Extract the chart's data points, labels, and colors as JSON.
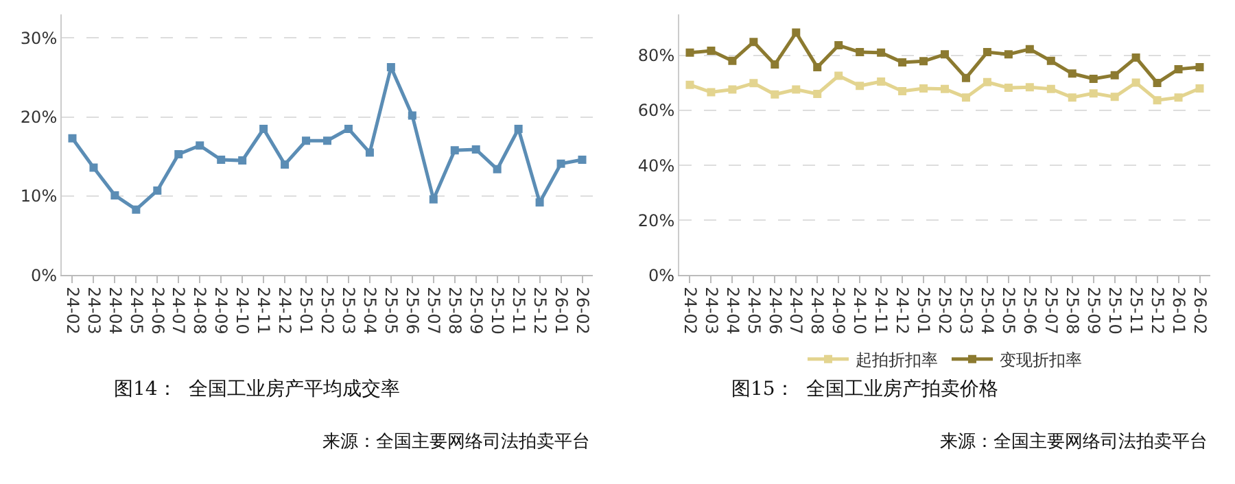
{
  "chart_data": [
    {
      "type": "line",
      "title": "图14：  全国工业房产平均成交率",
      "annotations": [
        "来源：全国主要网络司法拍卖平台"
      ],
      "categories": [
        "24-02",
        "24-03",
        "24-04",
        "24-05",
        "24-06",
        "24-07",
        "24-08",
        "24-09",
        "24-10",
        "24-11",
        "24-12",
        "25-01",
        "25-02",
        "25-03",
        "25-04",
        "25-05",
        "25-06",
        "25-07",
        "25-08",
        "25-09",
        "25-10",
        "25-11",
        "25-12",
        "26-01",
        "26-02"
      ],
      "series": [
        {
          "color": "#5b8db5",
          "values": [
            17.3,
            13.6,
            10.1,
            8.3,
            10.7,
            15.3,
            16.4,
            14.6,
            14.5,
            18.5,
            14.0,
            17.0,
            17.0,
            18.5,
            15.5,
            26.3,
            20.2,
            9.6,
            15.8,
            15.9,
            13.4,
            18.5,
            9.2,
            14.1,
            14.6
          ]
        }
      ],
      "ylim": [
        0,
        33
      ],
      "yticks": [
        {
          "value": 0,
          "label": "0%"
        },
        {
          "value": 10,
          "label": "10%"
        },
        {
          "value": 20,
          "label": "20%"
        },
        {
          "value": 30,
          "label": "30%"
        }
      ],
      "grid": "y",
      "marker": "square",
      "legend": false
    },
    {
      "type": "line",
      "title": "图15：  全国工业房产拍卖价格",
      "annotations": [
        "来源：全国主要网络司法拍卖平台"
      ],
      "categories": [
        "24-02",
        "24-03",
        "24-04",
        "24-05",
        "24-06",
        "24-07",
        "24-08",
        "24-09",
        "24-10",
        "24-11",
        "24-12",
        "25-01",
        "25-02",
        "25-03",
        "25-04",
        "25-05",
        "25-06",
        "25-07",
        "25-08",
        "25-09",
        "25-10",
        "25-11",
        "25-12",
        "26-01",
        "26-02"
      ],
      "series": [
        {
          "name": "起拍折扣率",
          "color": "#e3d48f",
          "values": [
            69.3,
            66.6,
            67.6,
            69.9,
            65.8,
            67.6,
            66.0,
            72.6,
            68.9,
            70.5,
            67.0,
            68.0,
            67.8,
            64.7,
            70.3,
            68.2,
            68.4,
            67.8,
            64.7,
            66.2,
            64.9,
            70.1,
            63.7,
            64.7,
            68.0
          ]
        },
        {
          "name": "变现折扣率",
          "color": "#8c7a30",
          "values": [
            81.0,
            81.7,
            78.0,
            84.9,
            76.7,
            88.3,
            75.7,
            83.7,
            81.2,
            81.0,
            77.5,
            77.9,
            80.4,
            71.8,
            81.2,
            80.4,
            82.3,
            78.0,
            73.4,
            71.5,
            72.8,
            79.2,
            70.0,
            75.0,
            75.7
          ]
        }
      ],
      "ylim": [
        0,
        95
      ],
      "yticks": [
        {
          "value": 0,
          "label": "0%"
        },
        {
          "value": 20,
          "label": "20%"
        },
        {
          "value": 40,
          "label": "40%"
        },
        {
          "value": 60,
          "label": "60%"
        },
        {
          "value": 80,
          "label": "80%"
        }
      ],
      "grid": "y",
      "marker": "square",
      "legend": "bottom"
    }
  ]
}
